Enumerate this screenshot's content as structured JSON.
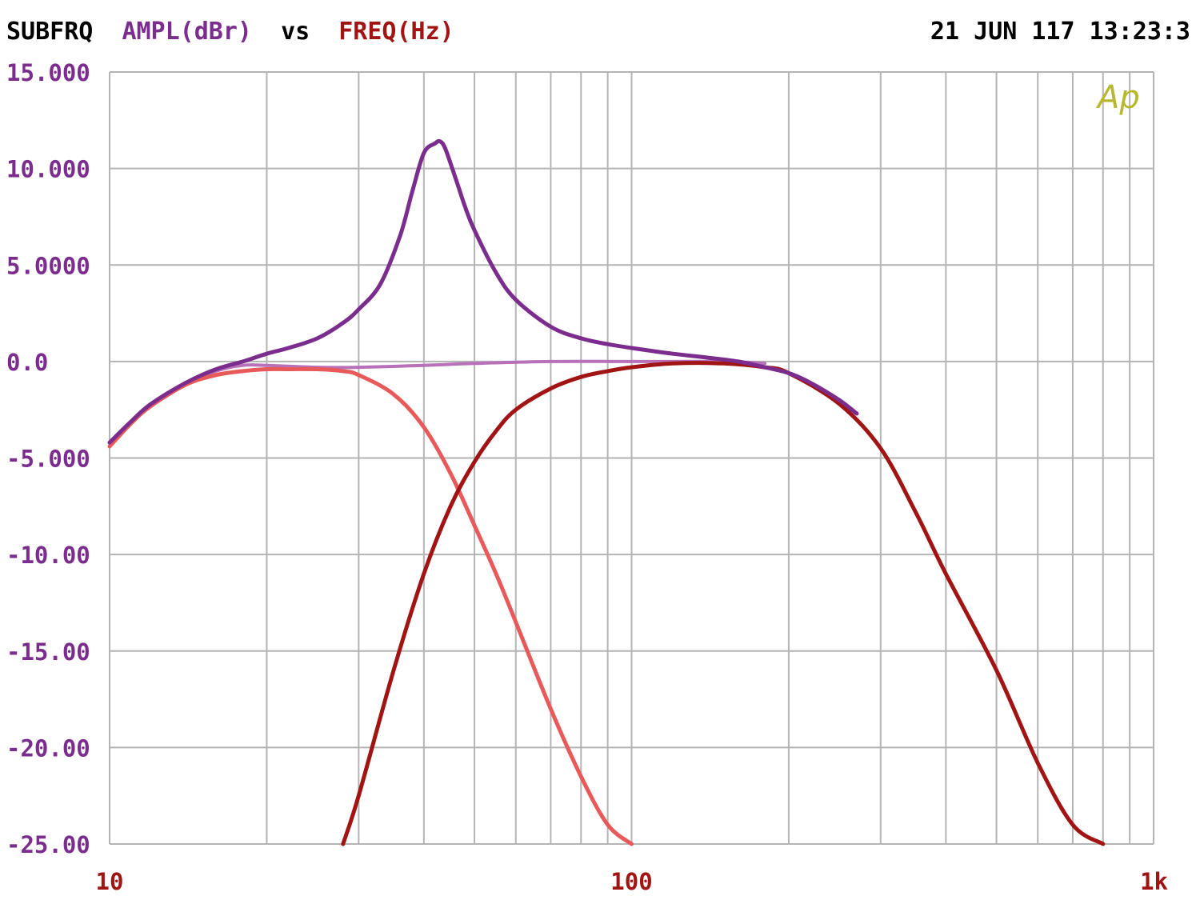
{
  "header": {
    "title_prefix": "SUBFRQ",
    "y_quantity": "AMPL(dBr)",
    "vs": "vs",
    "x_quantity": "FREQ(Hz)",
    "timestamp": "21 JUN 117 13:23:3"
  },
  "logo": "Ap",
  "colors": {
    "background": "#ffffff",
    "grid": "#b4b4b4",
    "header_text": "#000000",
    "y_axis_text": "#7b2d8e",
    "x_axis_text": "#a01414",
    "logo": "#b8b830"
  },
  "chart_data": {
    "type": "line",
    "xscale": "log",
    "xlim": [
      10,
      1000
    ],
    "ylim": [
      -25,
      15
    ],
    "grid": true,
    "xlabel": "FREQ(Hz)",
    "ylabel": "AMPL(dBr)",
    "x_tick_labels": [
      "10",
      "100",
      "1k"
    ],
    "x_tick_values": [
      10,
      100,
      1000
    ],
    "y_tick_labels": [
      "15.000",
      "10.000",
      "5.0000",
      "0.0",
      "-5.000",
      "-10.00",
      "-15.00",
      "-20.00",
      "-25.00"
    ],
    "y_tick_values": [
      15,
      10,
      5,
      0,
      -5,
      -10,
      -15,
      -20,
      -25
    ],
    "series": [
      {
        "color": "#7b2d8e",
        "width": 5,
        "x": [
          10,
          11,
          12,
          14,
          16,
          18,
          20,
          22,
          25,
          28,
          30,
          33,
          36,
          38,
          40,
          42,
          43,
          44,
          46,
          48,
          50,
          55,
          60,
          70,
          80,
          90,
          100,
          120,
          140,
          160,
          180,
          200,
          220,
          250,
          270
        ],
        "y": [
          -4.2,
          -3.1,
          -2.2,
          -1.1,
          -0.4,
          0.0,
          0.4,
          0.7,
          1.2,
          2.0,
          2.7,
          4.0,
          6.5,
          8.8,
          10.8,
          11.3,
          11.4,
          11.0,
          9.5,
          8.0,
          6.8,
          4.6,
          3.2,
          1.8,
          1.2,
          0.9,
          0.7,
          0.4,
          0.2,
          0.0,
          -0.3,
          -0.6,
          -1.1,
          -2.0,
          -2.7
        ]
      },
      {
        "color": "#b870b8",
        "width": 4,
        "x": [
          12,
          14,
          16,
          18,
          20,
          25,
          30,
          40,
          50,
          70,
          100,
          150,
          180
        ],
        "y": [
          -2.3,
          -1.2,
          -0.5,
          -0.2,
          -0.2,
          -0.3,
          -0.3,
          -0.2,
          -0.1,
          0.0,
          0.0,
          0.0,
          -0.1
        ]
      },
      {
        "color": "#e85a5a",
        "width": 5,
        "x": [
          10,
          11,
          12,
          14,
          16,
          18,
          20,
          22,
          25,
          28,
          30,
          35,
          40,
          45,
          50,
          55,
          60,
          70,
          80,
          90,
          100
        ],
        "y": [
          -4.4,
          -3.2,
          -2.3,
          -1.2,
          -0.7,
          -0.5,
          -0.4,
          -0.4,
          -0.4,
          -0.5,
          -0.7,
          -1.7,
          -3.4,
          -5.8,
          -8.5,
          -11.0,
          -13.5,
          -18.0,
          -21.5,
          -24.0,
          -25.0
        ]
      },
      {
        "color": "#a01414",
        "width": 5,
        "x": [
          28,
          30,
          35,
          40,
          45,
          50,
          55,
          60,
          70,
          80,
          90,
          100,
          120,
          150,
          180,
          200,
          250,
          300,
          350,
          400,
          500,
          600,
          700,
          800
        ],
        "y": [
          -25.0,
          -22.5,
          -16.0,
          -11.0,
          -7.5,
          -5.2,
          -3.6,
          -2.5,
          -1.4,
          -0.8,
          -0.5,
          -0.3,
          -0.1,
          -0.1,
          -0.3,
          -0.6,
          -2.2,
          -4.5,
          -7.8,
          -11.0,
          -16.0,
          -20.8,
          -24.0,
          -25.0
        ]
      }
    ]
  }
}
